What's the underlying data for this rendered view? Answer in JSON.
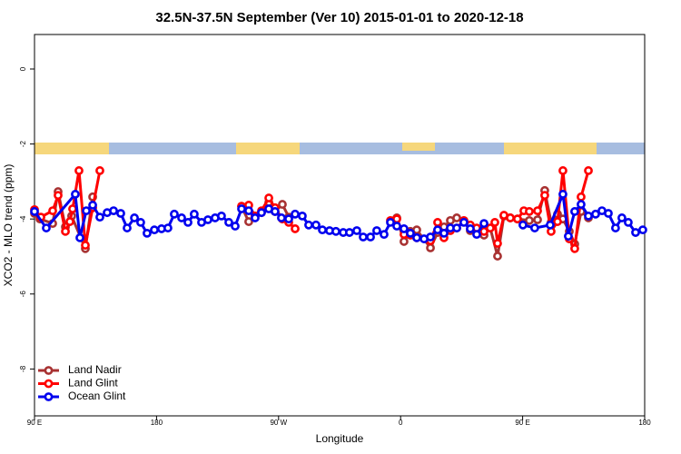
{
  "chart_data": {
    "type": "line",
    "title": "32.5N-37.5N September (Ver 10)   2015-01-01 to 2020-12-18",
    "x_label": "Longitude",
    "y_label": "XCO2 - MLO trend (ppm)",
    "xlim": [
      90,
      540
    ],
    "xticks": [
      {
        "value": 90,
        "label": "90 E"
      },
      180,
      {
        "value": 270,
        "label": "90 W"
      },
      {
        "value": 360,
        "label": "0"
      },
      {
        "value": 450,
        "label": "90 E"
      },
      {
        "value": 540,
        "label": "180"
      }
    ],
    "ylim": [
      -9.25,
      0.92
    ],
    "yticks": [
      0,
      -2,
      -4,
      -6,
      -8
    ],
    "legend": "bottom-left",
    "series": [
      {
        "name": "Land Nadir",
        "color": "#a83232",
        "x": [
          90,
          94,
          103.4,
          107.4,
          112.8,
          117.4,
          127.5,
          132.9,
          null,
          242.7,
          248.0,
          252.7,
          257.4,
          262.8,
          267.4,
          272.8,
          277.5,
          null,
          357.2,
          362.5,
          367.2,
          371.9,
          382.0,
          387.3,
          392.0,
          396.7,
          401.4,
          406.7,
          411.4,
          416.1,
          421.5,
          426.1,
          431.5,
          436.2,
          440.9,
          446.2,
          454.9,
          461.0,
          466.3,
          471.0,
          475.7,
          479.7,
          484.4,
          488.4,
          493.1,
          498.5
        ],
        "values": [
          -3.85,
          -4.0,
          -4.12,
          -3.27,
          -4.21,
          -3.92,
          -4.79,
          -3.41,
          null,
          -3.66,
          -4.07,
          -3.92,
          -3.83,
          -3.56,
          -3.8,
          -3.61,
          -3.95,
          null,
          -3.97,
          -4.6,
          -4.33,
          -4.29,
          -4.77,
          -4.36,
          -4.21,
          -4.04,
          -3.97,
          -4.07,
          -4.31,
          -4.33,
          -4.43,
          -4.24,
          -4.99,
          -3.92,
          -3.97,
          -4.0,
          -4.04,
          -4.02,
          -3.24,
          -4.09,
          -3.87,
          -4.0,
          -4.33,
          -4.67,
          -3.8,
          -3.97
        ]
      },
      {
        "name": "Land Glint",
        "color": "#ff0000",
        "x": [
          90,
          94.7,
          103.4,
          107.4,
          112.8,
          116.1,
          118.1,
          122.8,
          127.5,
          132.9,
          138.2,
          null,
          242.7,
          248.0,
          252.7,
          257.4,
          262.8,
          267.4,
          272.8,
          277.5,
          282.2,
          null,
          352.5,
          357.2,
          362.5,
          367.2,
          371.9,
          382.0,
          387.3,
          392.0,
          396.7,
          401.4,
          406.7,
          411.4,
          416.1,
          421.5,
          426.1,
          429.5,
          431.5,
          436.2,
          440.9,
          446.2,
          450.9,
          454.9,
          461.0,
          466.3,
          471.0,
          475.7,
          479.7,
          484.4,
          488.4,
          493.1,
          498.5
        ],
        "values": [
          -3.75,
          -3.95,
          -3.78,
          -3.37,
          -4.33,
          -4.07,
          -3.73,
          -2.71,
          -4.7,
          -3.7,
          -2.71,
          null,
          -3.66,
          -3.63,
          -3.92,
          -3.78,
          -3.44,
          -3.7,
          -4.0,
          -4.09,
          -4.26,
          null,
          -4.04,
          -4.0,
          -4.41,
          -4.43,
          -4.5,
          -4.58,
          -4.09,
          -4.5,
          -4.31,
          -4.24,
          -4.04,
          -4.16,
          -4.24,
          -4.33,
          -4.24,
          -4.09,
          -4.65,
          -3.9,
          -3.97,
          -4.0,
          -3.78,
          -3.8,
          -3.78,
          -3.37,
          -4.33,
          -4.07,
          -2.71,
          -4.53,
          -4.79,
          -3.41,
          -2.71
        ]
      },
      {
        "name": "Ocean Glint",
        "color": "#0000ee",
        "x": [
          90,
          98.7,
          120.1,
          123.5,
          128.2,
          132.9,
          138.2,
          143.6,
          148.3,
          153.6,
          158.3,
          163.7,
          168.3,
          173.0,
          178.4,
          183.7,
          188.4,
          193.1,
          198.5,
          203.2,
          207.8,
          213.2,
          217.9,
          223.2,
          227.9,
          233.3,
          238.0,
          242.7,
          248.0,
          252.7,
          257.4,
          262.8,
          267.4,
          272.1,
          277.5,
          282.2,
          287.5,
          292.2,
          297.6,
          302.3,
          307.6,
          312.3,
          317.7,
          322.3,
          327.7,
          332.4,
          337.8,
          342.4,
          347.8,
          352.5,
          357.2,
          362.5,
          367.2,
          371.9,
          377.3,
          382.0,
          387.3,
          392.0,
          396.7,
          401.4,
          406.7,
          411.4,
          416.1,
          421.5,
          null,
          450.2,
          458.9,
          470.3,
          479.7,
          483.7,
          488.4,
          493.1,
          498.5,
          503.8,
          508.5,
          513.2,
          518.5,
          523.2,
          527.9,
          533.3,
          538.6
        ],
        "values": [
          -3.8,
          -4.24,
          -3.34,
          -4.5,
          -3.78,
          -3.63,
          -3.95,
          -3.83,
          -3.78,
          -3.85,
          -4.24,
          -3.97,
          -4.09,
          -4.38,
          -4.29,
          -4.26,
          -4.24,
          -3.87,
          -3.97,
          -4.09,
          -3.87,
          -4.09,
          -4.02,
          -3.97,
          -3.92,
          -4.09,
          -4.19,
          -3.73,
          -3.78,
          -3.97,
          -3.83,
          -3.73,
          -3.8,
          -3.97,
          -4.0,
          -3.87,
          -3.92,
          -4.16,
          -4.16,
          -4.29,
          -4.31,
          -4.33,
          -4.36,
          -4.36,
          -4.31,
          -4.48,
          -4.48,
          -4.31,
          -4.41,
          -4.09,
          -4.19,
          -4.26,
          -4.38,
          -4.5,
          -4.53,
          -4.48,
          -4.29,
          -4.38,
          -4.24,
          -4.24,
          -4.09,
          -4.26,
          -4.41,
          -4.12,
          null,
          -4.16,
          -4.24,
          -4.16,
          -3.34,
          -4.46,
          -3.8,
          -3.61,
          -3.92,
          -3.87,
          -3.78,
          -3.85,
          -4.24,
          -3.97,
          -4.09,
          -4.36,
          -4.29
        ]
      }
    ]
  }
}
